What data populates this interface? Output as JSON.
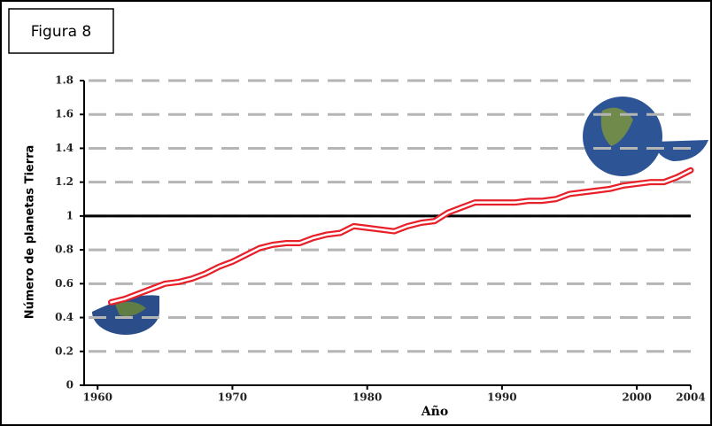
{
  "chart_data": {
    "type": "line",
    "title": "Figura 8",
    "x_label": "Año",
    "y_label": "Número de planetas Tierra",
    "x": [
      1961,
      1962,
      1963,
      1964,
      1965,
      1966,
      1967,
      1968,
      1969,
      1970,
      1971,
      1972,
      1973,
      1974,
      1975,
      1976,
      1977,
      1978,
      1979,
      1980,
      1981,
      1982,
      1983,
      1984,
      1985,
      1986,
      1987,
      1988,
      1989,
      1990,
      1991,
      1992,
      1993,
      1994,
      1995,
      1996,
      1997,
      1998,
      1999,
      2000,
      2001,
      2002,
      2003,
      2004
    ],
    "series": [
      {
        "color": "#e8202a",
        "values": [
          0.49,
          0.51,
          0.54,
          0.57,
          0.6,
          0.61,
          0.63,
          0.66,
          0.7,
          0.73,
          0.77,
          0.81,
          0.83,
          0.84,
          0.84,
          0.87,
          0.89,
          0.9,
          0.94,
          0.93,
          0.92,
          0.91,
          0.94,
          0.96,
          0.97,
          1.02,
          1.05,
          1.08,
          1.08,
          1.08,
          1.08,
          1.09,
          1.09,
          1.1,
          1.13,
          1.14,
          1.15,
          1.16,
          1.18,
          1.19,
          1.2,
          1.2,
          1.23,
          1.27
        ]
      }
    ],
    "xlim": [
      1959,
      2004
    ],
    "xticks": [
      1960,
      1970,
      1980,
      1990,
      2000,
      2004
    ],
    "ylim": [
      0,
      1.8
    ],
    "yticks": [
      0,
      0.2,
      0.4,
      0.6,
      0.8,
      1,
      1.2,
      1.4,
      1.6,
      1.8
    ],
    "grid": true,
    "reference_line": 1
  }
}
